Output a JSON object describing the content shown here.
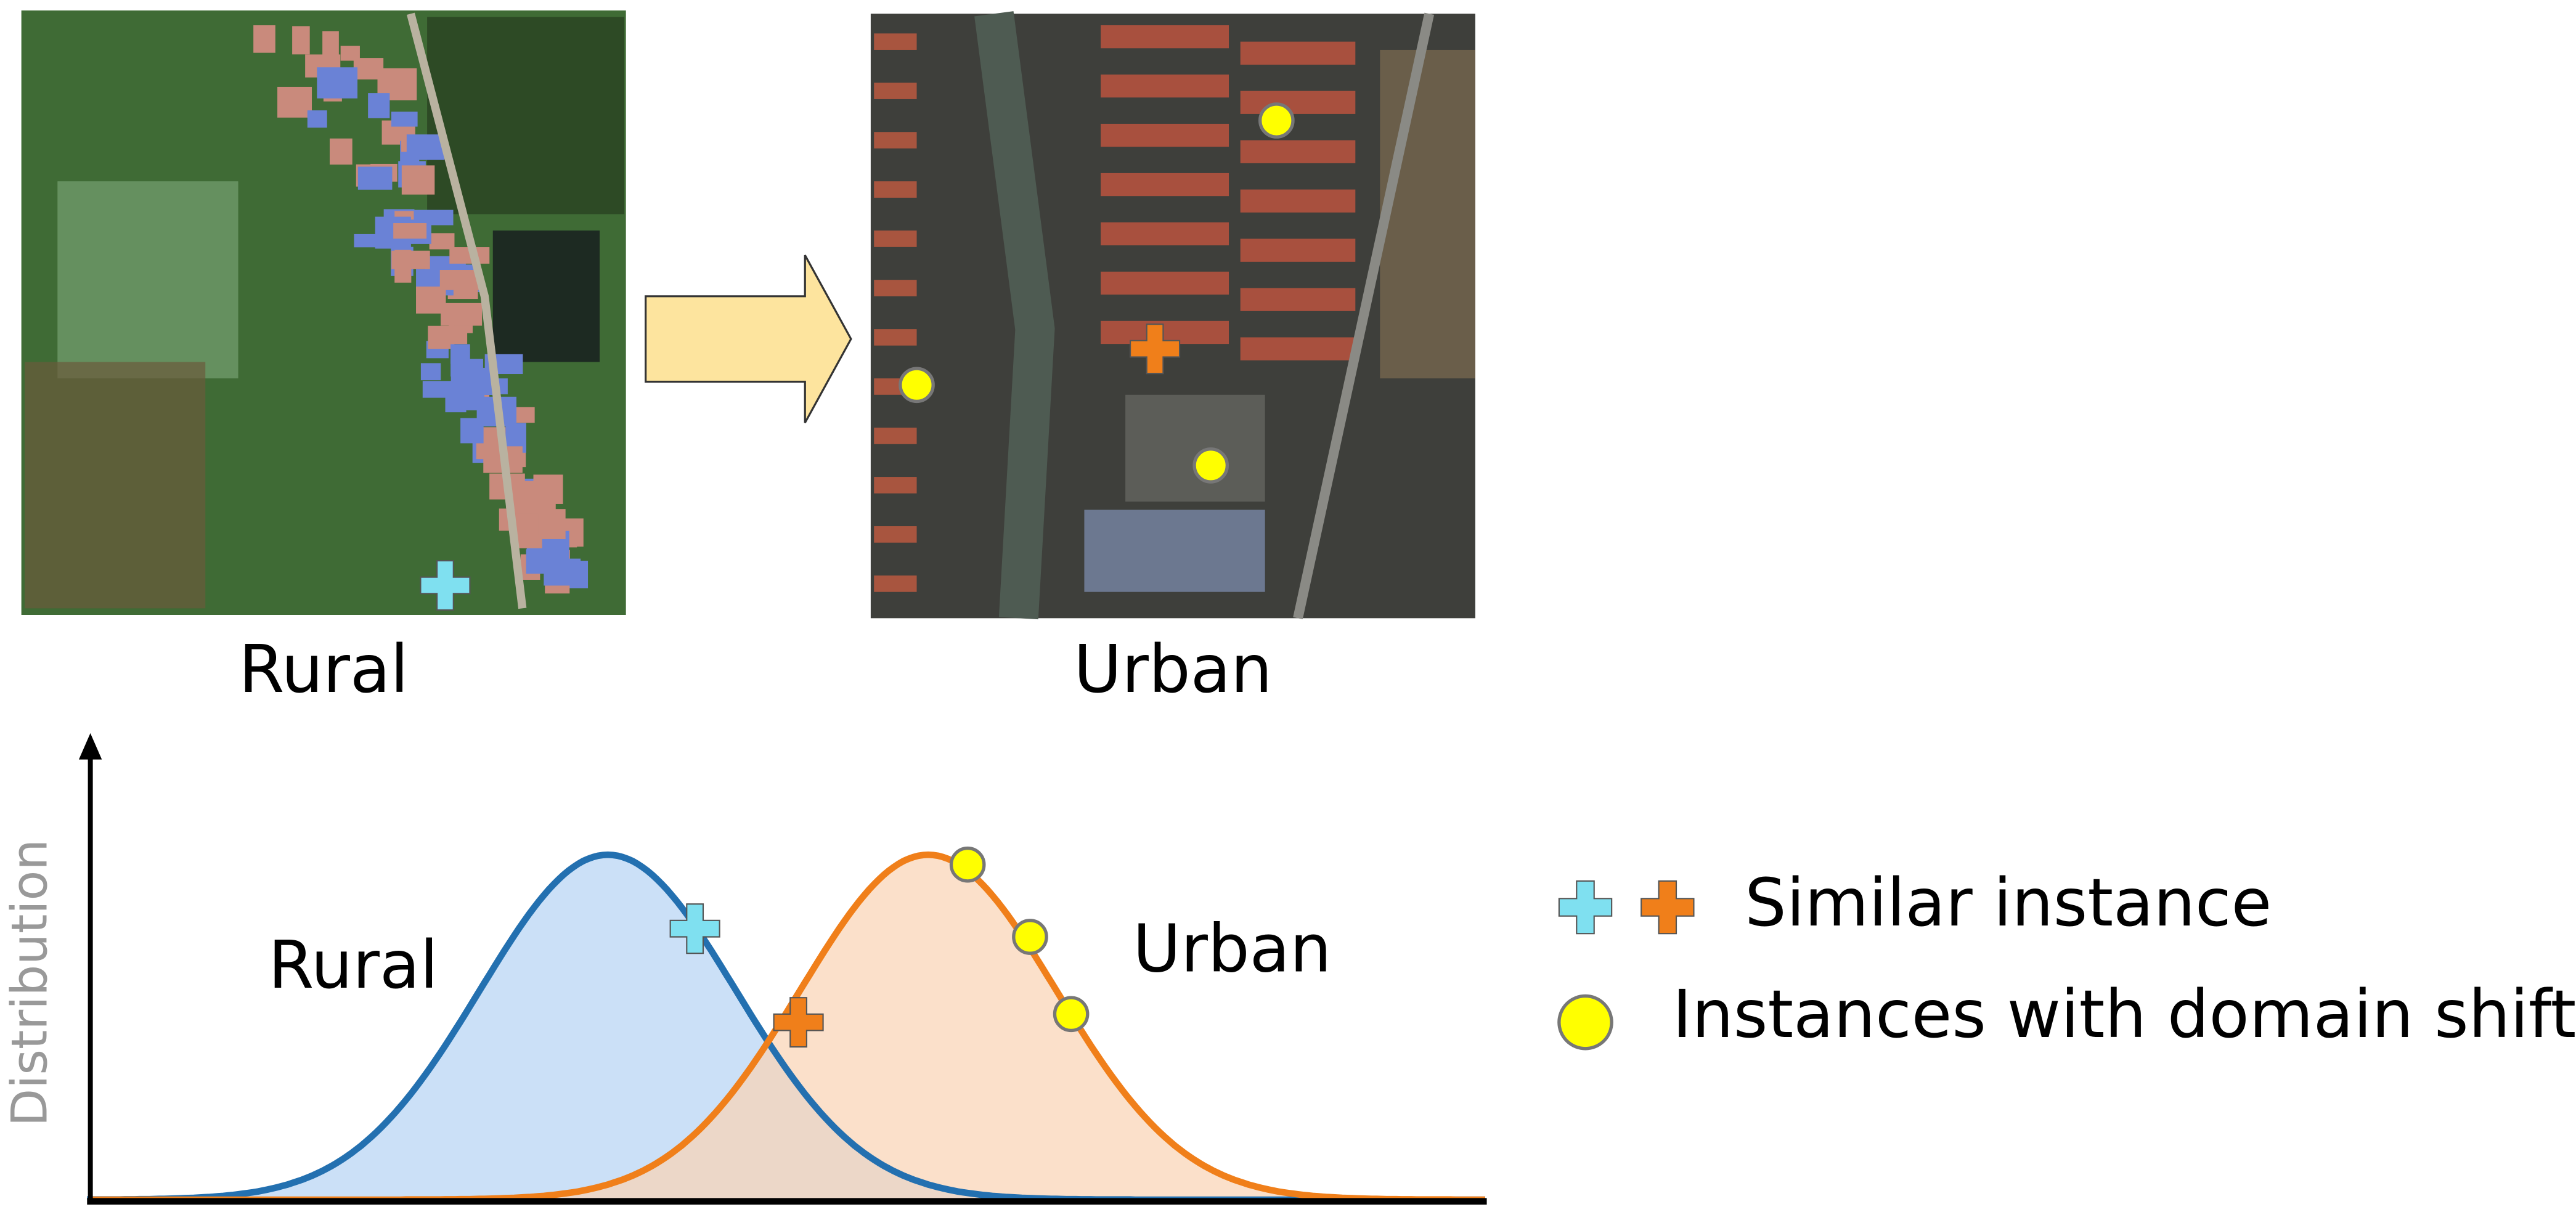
{
  "images": [
    {
      "label": "Rural"
    },
    {
      "label": "Urban"
    }
  ],
  "plot": {
    "y_axis_label": "Distribution",
    "curves": [
      {
        "label": "Rural"
      },
      {
        "label": "Urban"
      }
    ]
  },
  "legend": [
    {
      "label": "Similar instance"
    },
    {
      "label": "Instances with domain shift"
    }
  ]
}
